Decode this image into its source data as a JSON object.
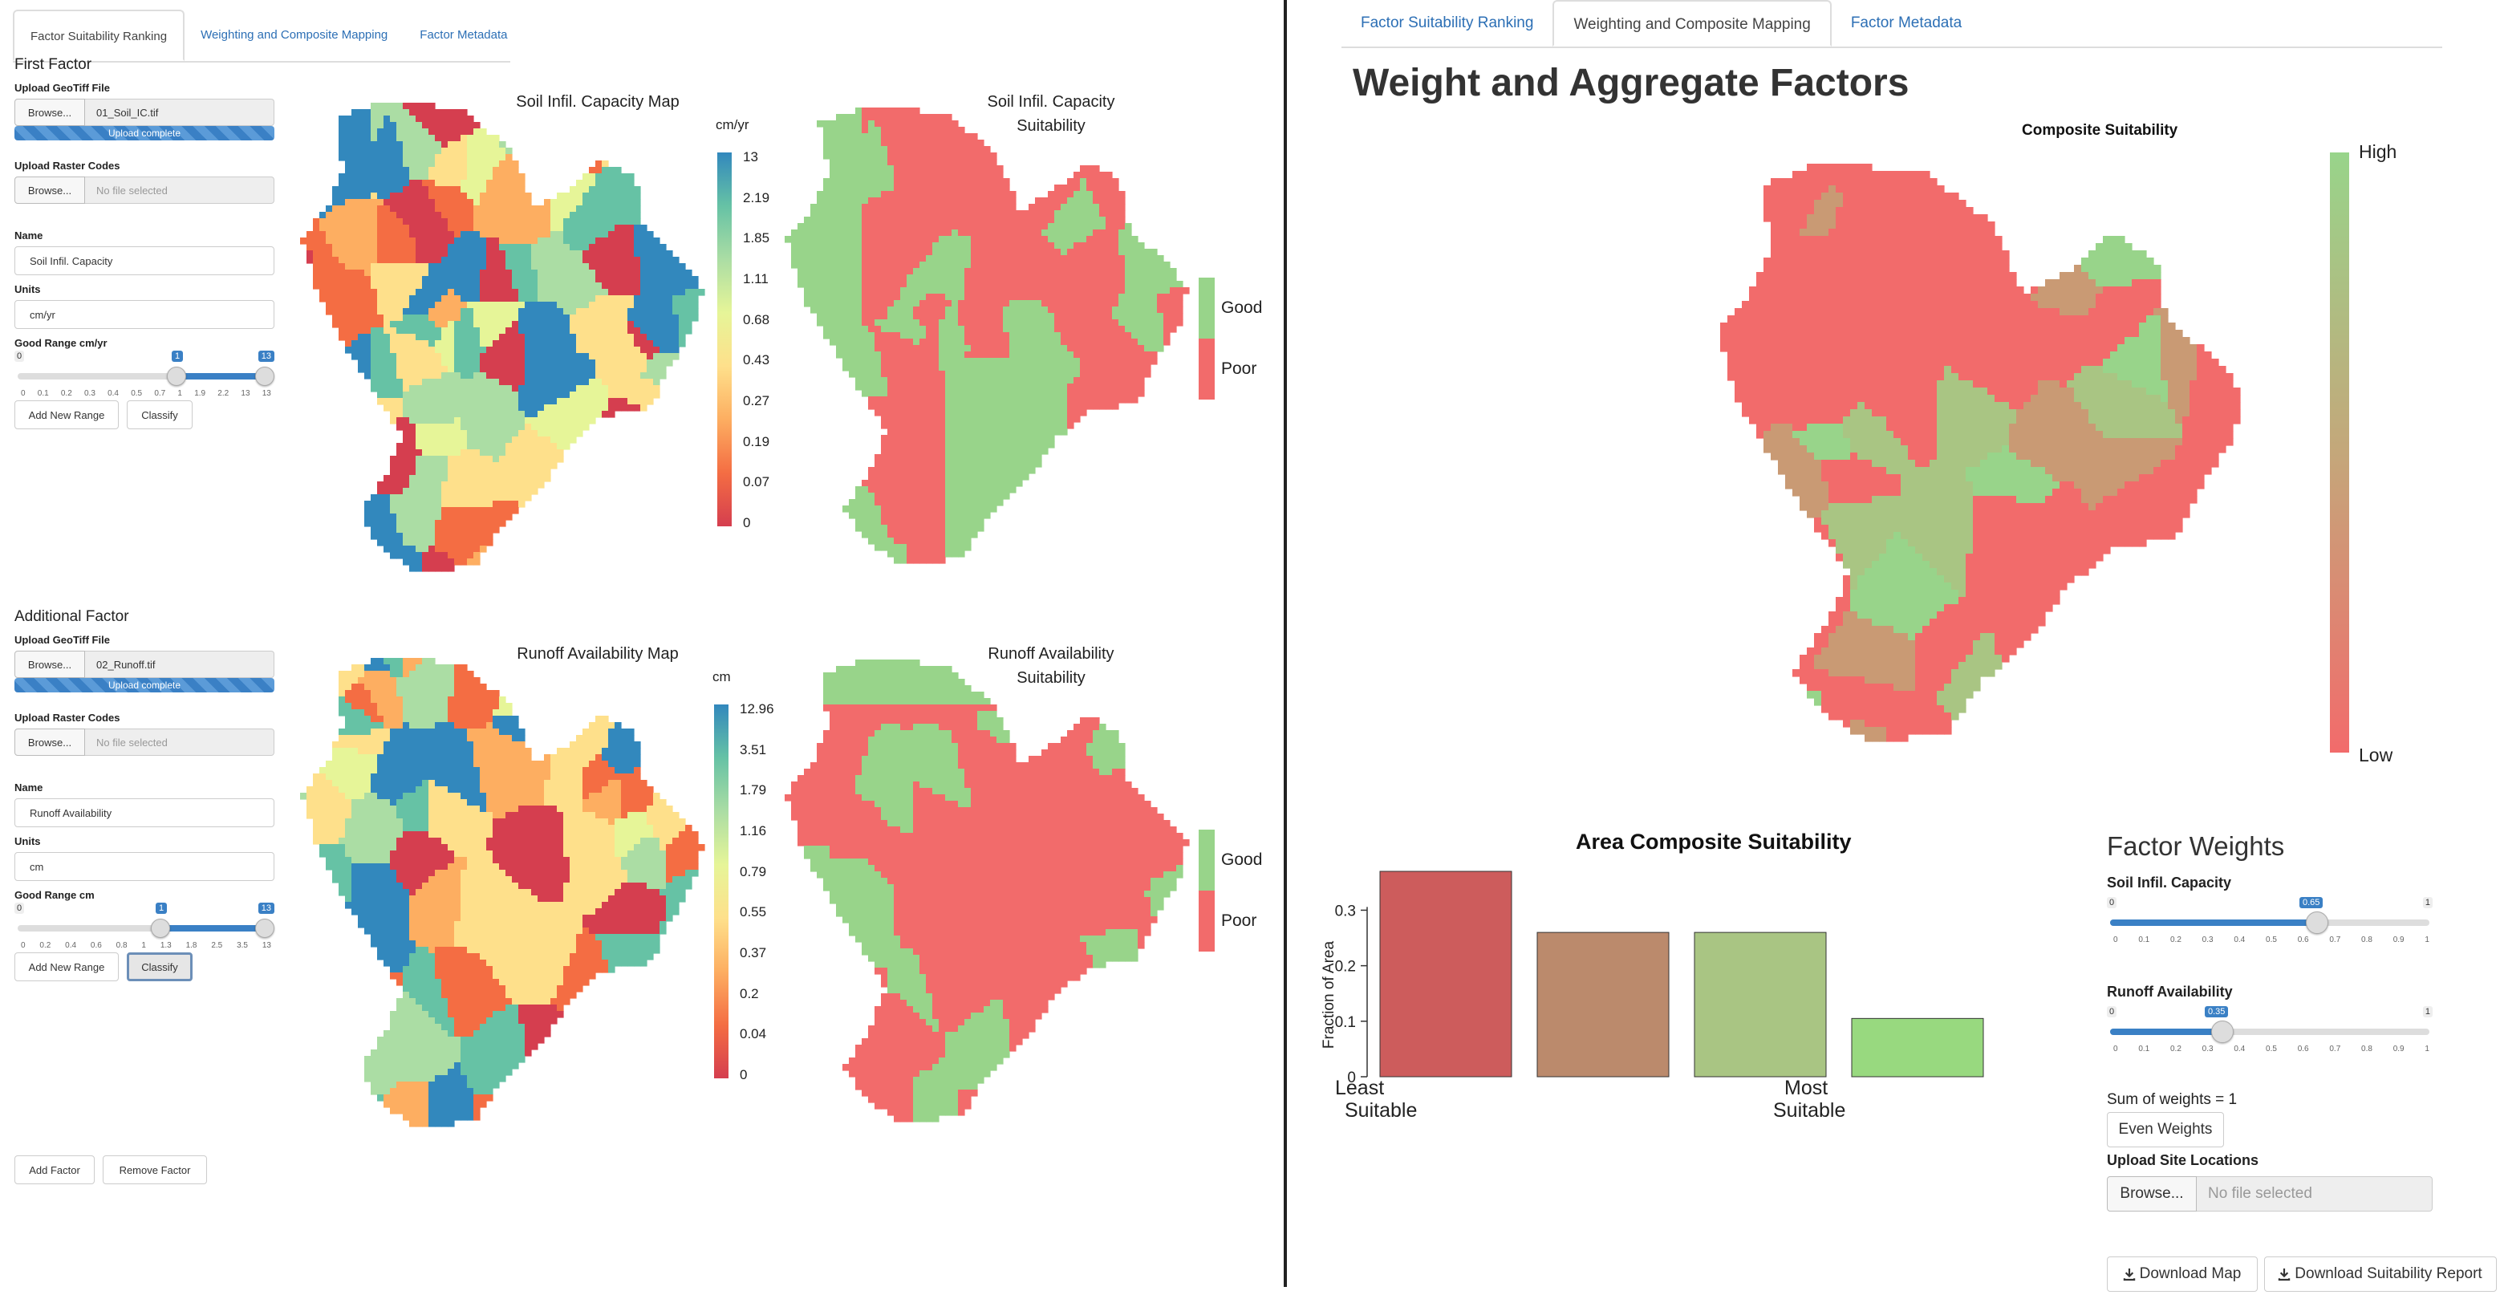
{
  "left": {
    "tabs": [
      "Factor Suitability Ranking",
      "Weighting and Composite Mapping",
      "Factor Metadata"
    ],
    "factor1": {
      "section": "First Factor",
      "geotiff_label": "Upload GeoTiff File",
      "browse": "Browse...",
      "geotiff_file": "01_Soil_IC.tif",
      "upload_status": "Upload complete",
      "raster_label": "Upload Raster Codes",
      "raster_file": "No file selected",
      "name_label": "Name",
      "name_value": "Soil Infil. Capacity",
      "units_label": "Units",
      "units_value": "cm/yr",
      "range_label": "Good Range cm/yr",
      "slider": {
        "min": "0",
        "max": "13",
        "low": "1",
        "high": "13",
        "low_value": 1,
        "high_value": 13,
        "ticks": [
          "0",
          "0.1",
          "0.2",
          "0.3",
          "0.4",
          "0.5",
          "0.7",
          "1",
          "1.9",
          "2.2",
          "13",
          "13"
        ]
      },
      "add_range": "Add New Range",
      "classify": "Classify",
      "map_title": "Soil Infil. Capacity Map",
      "legend_unit": "cm/yr",
      "legend_ticks": [
        "13",
        "2.19",
        "1.85",
        "1.11",
        "0.68",
        "0.43",
        "0.27",
        "0.19",
        "0.07",
        "0"
      ],
      "suit_title_1": "Soil Infil. Capacity",
      "suit_title_2": "Suitability",
      "good": "Good",
      "poor": "Poor"
    },
    "factor2": {
      "section": "Additional Factor",
      "geotiff_label": "Upload GeoTiff File",
      "browse": "Browse...",
      "geotiff_file": "02_Runoff.tif",
      "upload_status": "Upload complete",
      "raster_label": "Upload Raster Codes",
      "raster_file": "No file selected",
      "name_label": "Name",
      "name_value": "Runoff Availability",
      "units_label": "Units",
      "units_value": "cm",
      "range_label": "Good Range cm",
      "slider": {
        "min": "0",
        "max": "13",
        "low": "1",
        "high": "13",
        "low_value": 1,
        "high_value": 13,
        "ticks": [
          "0",
          "0.2",
          "0.4",
          "0.6",
          "0.8",
          "1",
          "1.3",
          "1.8",
          "2.5",
          "3.5",
          "13"
        ]
      },
      "add_range": "Add New Range",
      "classify": "Classify",
      "map_title": "Runoff Availability Map",
      "legend_unit": "cm",
      "legend_ticks": [
        "12.96",
        "3.51",
        "1.79",
        "1.16",
        "0.79",
        "0.55",
        "0.37",
        "0.2",
        "0.04",
        "0"
      ],
      "suit_title_1": "Runoff Availability",
      "suit_title_2": "Suitability",
      "good": "Good",
      "poor": "Poor"
    },
    "add_factor": "Add Factor",
    "remove_factor": "Remove Factor"
  },
  "right": {
    "tabs": [
      "Factor Suitability Ranking",
      "Weighting and Composite Mapping",
      "Factor Metadata"
    ],
    "page_title": "Weight and Aggregate Factors",
    "composite_title": "Composite Suitability",
    "legend_high": "High",
    "legend_low": "Low",
    "weights_title": "Factor Weights",
    "weight1": {
      "label": "Soil Infil. Capacity",
      "min": "0",
      "max": "1",
      "value_label": "0.65",
      "value": 0.65
    },
    "weight2": {
      "label": "Runoff Availability",
      "min": "0",
      "max": "1",
      "value_label": "0.35",
      "value": 0.35
    },
    "weight_ticks": [
      "0",
      "0.1",
      "0.2",
      "0.3",
      "0.4",
      "0.5",
      "0.6",
      "0.7",
      "0.8",
      "0.9",
      "1"
    ],
    "sum_text": "Sum of weights = 1",
    "even_weights": "Even Weights",
    "upload_sites": "Upload Site Locations",
    "browse": "Browse...",
    "no_file": "No file selected",
    "download_map": "Download Map",
    "download_report": "Download Suitability Report"
  },
  "colors": {
    "good": "#98d48a",
    "poor": "#f26b6b",
    "spectral": [
      "#d53e4f",
      "#f46d43",
      "#fdae61",
      "#fee08b",
      "#e6f598",
      "#abdda4",
      "#66c2a5",
      "#3288bd"
    ],
    "bars": [
      "#cd5c5c",
      "#bb8a6c",
      "#a9c583",
      "#98d97f"
    ],
    "accent": "#3a80c5"
  },
  "chart_data": {
    "type": "bar",
    "title": "Area Composite Suitability",
    "ylabel": "Fraction of Area",
    "categories": [
      "Least Suitable",
      "",
      "",
      "Most Suitable"
    ],
    "values": [
      0.37,
      0.26,
      0.26,
      0.105
    ],
    "ylim": [
      0,
      0.37
    ],
    "yticks": [
      "0",
      "0.1",
      "0.2",
      "0.3"
    ],
    "xlabel_left_1": "Least",
    "xlabel_left_2": "Suitable",
    "xlabel_right_1": "Most",
    "xlabel_right_2": "Suitable"
  }
}
